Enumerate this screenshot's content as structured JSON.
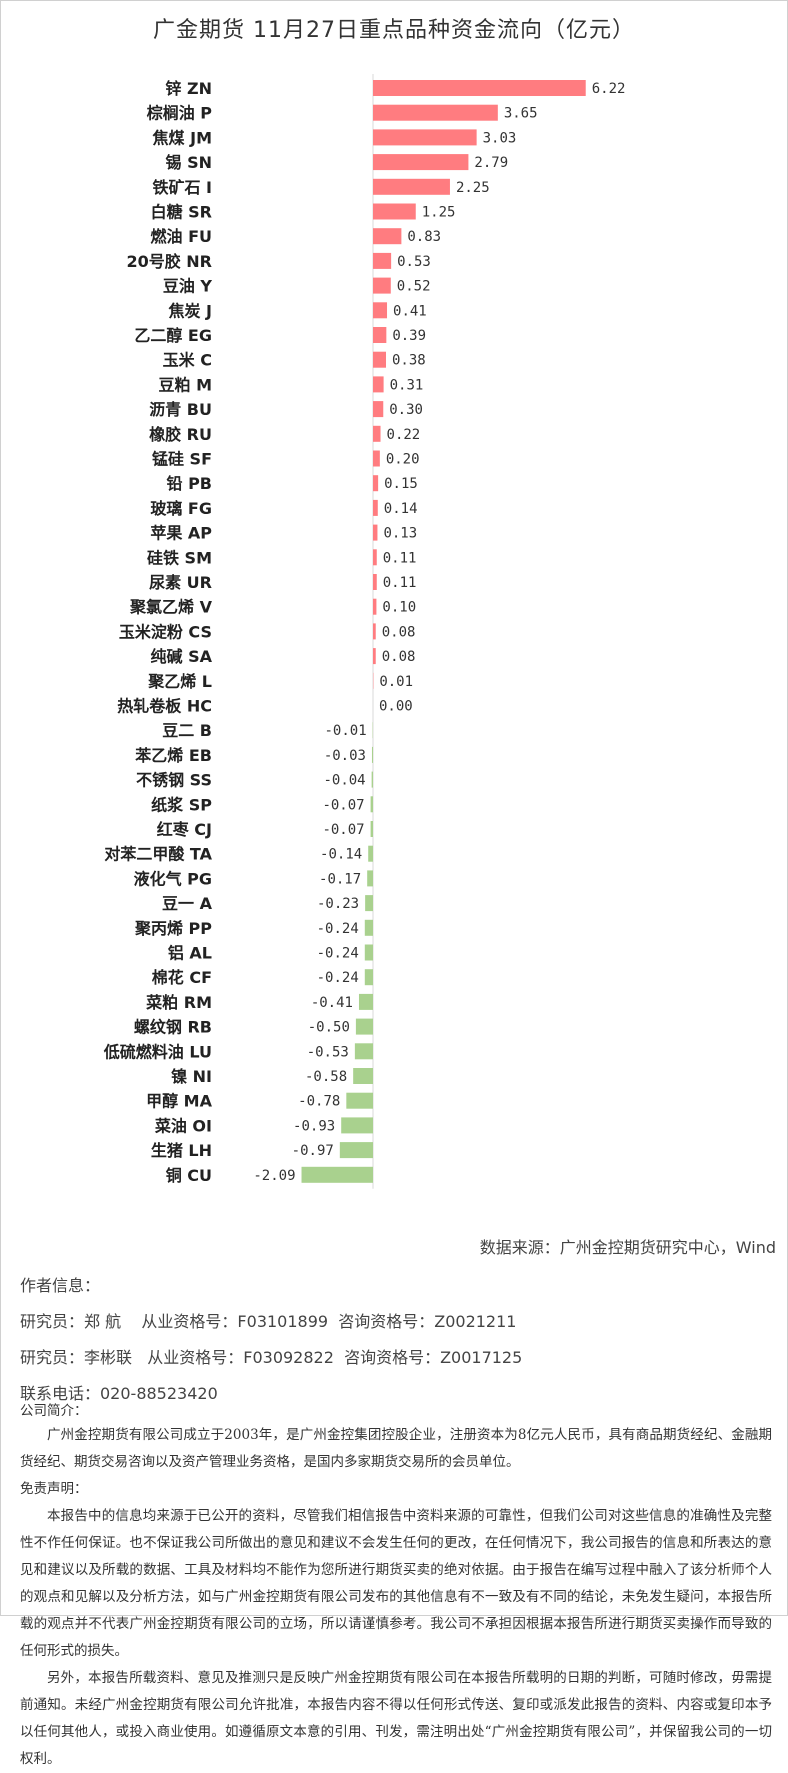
{
  "chart_data": {
    "type": "bar",
    "orientation": "horizontal",
    "title": "广金期货 11月27日重点品种资金流向（亿元）",
    "categories": [
      "锌 ZN",
      "棕榈油 P",
      "焦煤 JM",
      "锡 SN",
      "铁矿石 I",
      "白糖 SR",
      "燃油 FU",
      "20号胶 NR",
      "豆油 Y",
      "焦炭 J",
      "乙二醇 EG",
      "玉米 C",
      "豆粕 M",
      "沥青 BU",
      "橡胶 RU",
      "锰硅 SF",
      "铅 PB",
      "玻璃 FG",
      "苹果 AP",
      "硅铁 SM",
      "尿素 UR",
      "聚氯乙烯 V",
      "玉米淀粉 CS",
      "纯碱  SA",
      "聚乙烯 L",
      "热轧卷板 HC",
      "豆二 B",
      "苯乙烯 EB",
      "不锈钢 SS",
      "纸浆 SP",
      "红枣 CJ",
      "对苯二甲酸 TA",
      "液化气 PG",
      "豆一 A",
      "聚丙烯 PP",
      "铝 AL",
      "棉花 CF",
      "菜粕 RM",
      "螺纹钢 RB",
      "低硫燃料油 LU",
      "镍 NI",
      "甲醇 MA",
      "菜油 OI",
      "生猪 LH",
      "铜 CU"
    ],
    "values": [
      6.22,
      3.65,
      3.03,
      2.79,
      2.25,
      1.25,
      0.83,
      0.53,
      0.52,
      0.41,
      0.39,
      0.38,
      0.31,
      0.3,
      0.22,
      0.2,
      0.15,
      0.14,
      0.13,
      0.11,
      0.11,
      0.1,
      0.08,
      0.08,
      0.01,
      0.0,
      -0.01,
      -0.03,
      -0.04,
      -0.07,
      -0.07,
      -0.14,
      -0.17,
      -0.23,
      -0.24,
      -0.24,
      -0.24,
      -0.41,
      -0.5,
      -0.53,
      -0.58,
      -0.78,
      -0.93,
      -0.97,
      -2.09
    ],
    "colors": {
      "positive": "#ff7c80",
      "negative": "#a9d18e"
    },
    "grid": false
  },
  "source": "数据来源：广州金控期货研究中心，Wind",
  "author": {
    "heading": "作者信息：",
    "line1": "研究员：郑 航    从业资格号：F03101899  咨询资格号：Z0021211",
    "line2": "研究员：李彬联   从业资格号：F03092822  咨询资格号：Z0017125",
    "phone": "联系电话：020-88523420"
  },
  "company": {
    "heading": "公司简介：",
    "text": "广州金控期货有限公司成立于2003年，是广州金控集团控股企业，注册资本为8亿元人民币，具有商品期货经纪、金融期货经纪、期货交易咨询以及资产管理业务资格，是国内多家期货交易所的会员单位。"
  },
  "disclaimer": {
    "heading": "免责声明：",
    "p1": "本报告中的信息均来源于已公开的资料，尽管我们相信报告中资料来源的可靠性，但我们公司对这些信息的准确性及完整性不作任何保证。也不保证我公司所做出的意见和建议不会发生任何的更改，在任何情况下，我公司报告的信息和所表达的意见和建议以及所载的数据、工具及材料均不能作为您所进行期货买卖的绝对依据。由于报告在编写过程中融入了该分析师个人的观点和见解以及分析方法，如与广州金控期货有限公司发布的其他信息有不一致及有不同的结论，未免发生疑问，本报告所载的观点并不代表广州金控期货有限公司的立场，所以请谨慎参考。我公司不承担因根据本报告所进行期货买卖操作而导致的任何形式的损失。",
    "p2": "另外，本报告所载资料、意见及推测只是反映广州金控期货有限公司在本报告所载明的日期的判断，可随时修改，毋需提前通知。未经广州金控期货有限公司允许批准，本报告内容不得以任何形式传送、复印或派发此报告的资料、内容或复印本予以任何其他人，或投入商业使用。如遵循原文本意的引用、刊发，需注明出处“广州金控期货有限公司”，并保留我公司的一切权利。"
  }
}
